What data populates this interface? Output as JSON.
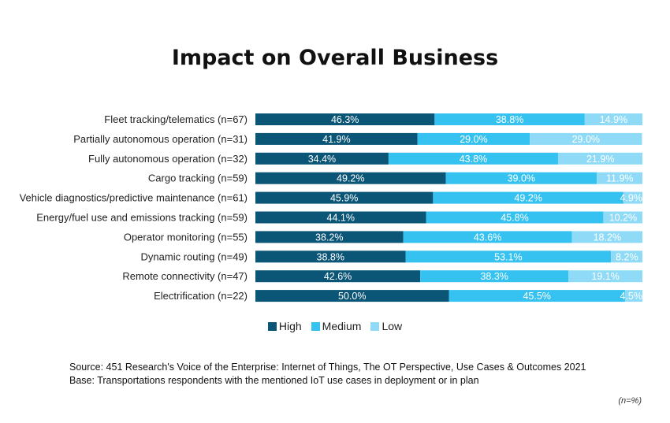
{
  "chart_data": {
    "type": "bar",
    "orientation": "horizontal",
    "stacked": true,
    "title": "Impact on Overall Business",
    "categories": [
      "Fleet tracking/telematics (n=67)",
      "Partially autonomous operation (n=31)",
      "Fully autonomous operation (n=32)",
      "Cargo tracking (n=59)",
      "Vehicle diagnostics/predictive maintenance (n=61)",
      "Energy/fuel use and emissions tracking (n=59)",
      "Operator monitoring (n=55)",
      "Dynamic routing (n=49)",
      "Remote connectivity (n=47)",
      "Electrification (n=22)"
    ],
    "series": [
      {
        "name": "High",
        "color": "#0b5577",
        "values": [
          46.3,
          41.9,
          34.4,
          49.2,
          45.9,
          44.1,
          38.2,
          38.8,
          42.6,
          50.0
        ]
      },
      {
        "name": "Medium",
        "color": "#36c2f0",
        "values": [
          38.8,
          29.0,
          43.8,
          39.0,
          49.2,
          45.8,
          43.6,
          53.1,
          38.3,
          45.5
        ]
      },
      {
        "name": "Low",
        "color": "#8fdbf7",
        "values": [
          14.9,
          29.0,
          21.9,
          11.9,
          4.9,
          10.2,
          18.2,
          8.2,
          19.1,
          4.5
        ]
      }
    ],
    "value_suffix": "%",
    "xlim": [
      0,
      100
    ],
    "grid": false,
    "legend_position": "bottom"
  },
  "source": "Source: 451 Research's Voice of the Enterprise: Internet of Things, The OT Perspective, Use Cases & Outcomes 2021",
  "base": "Base: Transportations respondents with the mentioned IoT use cases in deployment or in plan",
  "note": "(n=%)"
}
